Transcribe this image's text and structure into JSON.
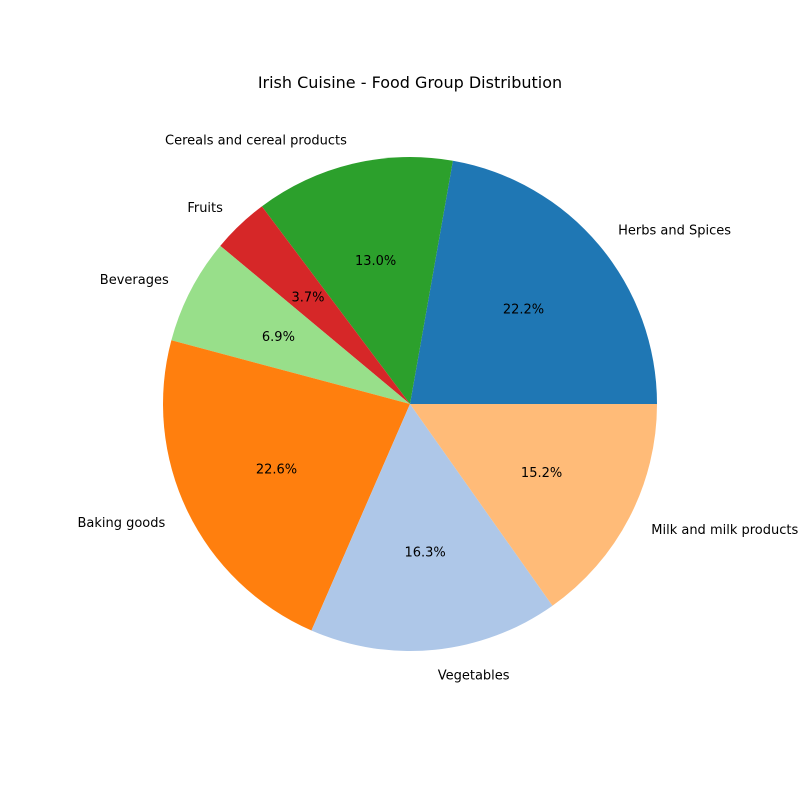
{
  "chart_data": {
    "type": "pie",
    "title": "Irish Cuisine - Food Group Distribution",
    "start_angle_deg": 0,
    "direction": "counterclockwise",
    "slices": [
      {
        "label": "Herbs and Spices",
        "value": 22.2,
        "pct_label": "22.2%",
        "color": "#1f77b4"
      },
      {
        "label": "Cereals and cereal products",
        "value": 13.0,
        "pct_label": "13.0%",
        "color": "#2ca02c"
      },
      {
        "label": "Fruits",
        "value": 3.7,
        "pct_label": "3.7%",
        "color": "#d62728"
      },
      {
        "label": "Beverages",
        "value": 6.9,
        "pct_label": "6.9%",
        "color": "#98df8a"
      },
      {
        "label": "Baking goods",
        "value": 22.6,
        "pct_label": "22.6%",
        "color": "#ff7f0e"
      },
      {
        "label": "Vegetables",
        "value": 16.3,
        "pct_label": "16.3%",
        "color": "#aec7e8"
      },
      {
        "label": "Milk and milk products",
        "value": 15.2,
        "pct_label": "15.2%",
        "color": "#ffbb78"
      }
    ]
  }
}
